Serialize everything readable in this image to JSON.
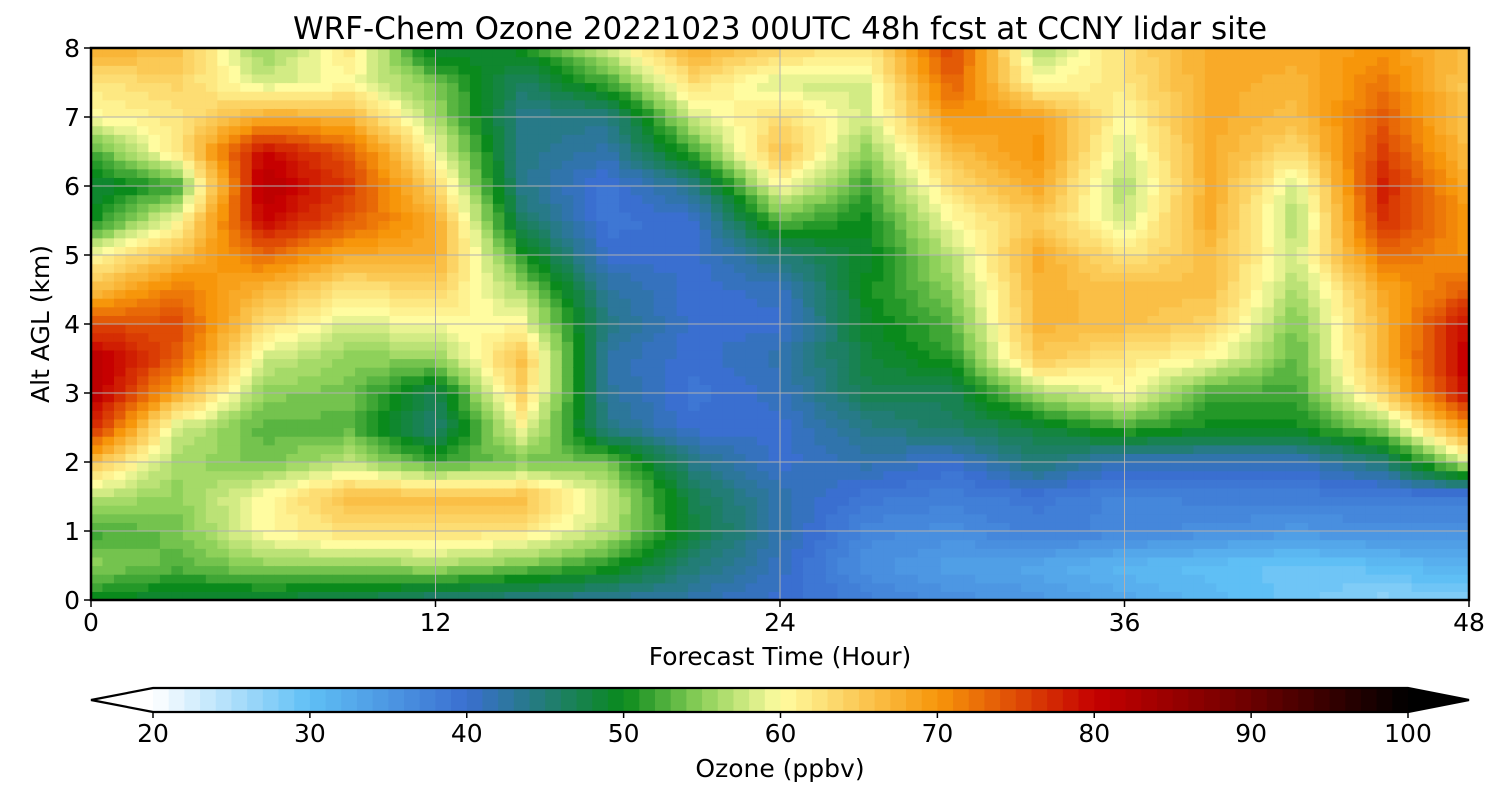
{
  "chart_data": {
    "type": "heatmap",
    "title": "WRF-Chem Ozone  20221023 00UTC 48h fcst at CCNY lidar site",
    "xlabel": "Forecast Time (Hour)",
    "ylabel": "Alt AGL (km)",
    "xlim": [
      0,
      48
    ],
    "ylim": [
      0,
      8
    ],
    "xticks": [
      0,
      12,
      24,
      36,
      48
    ],
    "yticks": [
      0,
      1,
      2,
      3,
      4,
      5,
      6,
      7,
      8
    ],
    "grid": true,
    "colorbar": {
      "label": "Ozone  (ppbv)",
      "orientation": "horizontal",
      "extend": "both",
      "range": [
        20,
        100
      ],
      "ticks": [
        20,
        30,
        40,
        50,
        60,
        70,
        80,
        90,
        100
      ],
      "stops": [
        {
          "v": 20,
          "c": "#ffffff"
        },
        {
          "v": 30,
          "c": "#5fbff5"
        },
        {
          "v": 40,
          "c": "#3a6fd0"
        },
        {
          "v": 50,
          "c": "#0a8a1c"
        },
        {
          "v": 55,
          "c": "#8ed15a"
        },
        {
          "v": 60,
          "c": "#fffca0"
        },
        {
          "v": 70,
          "c": "#f7960a"
        },
        {
          "v": 80,
          "c": "#c60000"
        },
        {
          "v": 90,
          "c": "#6b0000"
        },
        {
          "v": 100,
          "c": "#000000"
        }
      ]
    },
    "x_hours": [
      0,
      3,
      6,
      9,
      12,
      15,
      18,
      21,
      24,
      27,
      30,
      33,
      36,
      39,
      42,
      45,
      48
    ],
    "y_km": [
      0,
      0.5,
      1,
      1.5,
      2,
      2.5,
      3,
      3.5,
      4,
      4.5,
      5,
      5.5,
      6,
      6.5,
      7,
      7.5,
      8
    ],
    "z_ppbv": [
      [
        50,
        48,
        48,
        47,
        45,
        44,
        43,
        42,
        40,
        38,
        36,
        35,
        33,
        31,
        29,
        27,
        28
      ],
      [
        55,
        53,
        55,
        55,
        56,
        54,
        51,
        45,
        41,
        36,
        34,
        33,
        31,
        30,
        29,
        30,
        32
      ],
      [
        52,
        54,
        60,
        63,
        63,
        62,
        57,
        48,
        42,
        37,
        36,
        38,
        37,
        36,
        35,
        36,
        36
      ],
      [
        57,
        55,
        60,
        66,
        66,
        66,
        58,
        47,
        42,
        39,
        38,
        39,
        37,
        38,
        38,
        38,
        38
      ],
      [
        66,
        56,
        54,
        57,
        52,
        54,
        54,
        44,
        40,
        42,
        40,
        45,
        41,
        41,
        41,
        45,
        58
      ],
      [
        78,
        58,
        53,
        53,
        45,
        60,
        44,
        40,
        40,
        44,
        46,
        48,
        52,
        50,
        50,
        55,
        70
      ],
      [
        82,
        68,
        55,
        54,
        47,
        64,
        43,
        39,
        41,
        47,
        47,
        56,
        60,
        52,
        52,
        64,
        80
      ],
      [
        82,
        74,
        58,
        55,
        55,
        66,
        42,
        40,
        42,
        48,
        51,
        65,
        62,
        60,
        53,
        67,
        81
      ],
      [
        75,
        75,
        63,
        58,
        60,
        60,
        44,
        40,
        40,
        49,
        53,
        67,
        66,
        64,
        54,
        67,
        80
      ],
      [
        66,
        72,
        67,
        62,
        64,
        56,
        43,
        40,
        41,
        50,
        55,
        67,
        66,
        66,
        56,
        68,
        74
      ],
      [
        60,
        66,
        73,
        68,
        68,
        51,
        40,
        40,
        45,
        49,
        57,
        68,
        62,
        66,
        58,
        73,
        70
      ],
      [
        50,
        60,
        80,
        74,
        68,
        46,
        39,
        40,
        53,
        50,
        60,
        65,
        58,
        68,
        56,
        77,
        70
      ],
      [
        48,
        52,
        82,
        76,
        64,
        44,
        39,
        44,
        60,
        52,
        63,
        68,
        56,
        68,
        58,
        78,
        68
      ],
      [
        52,
        62,
        80,
        74,
        60,
        44,
        42,
        52,
        66,
        55,
        66,
        70,
        58,
        68,
        63,
        76,
        66
      ],
      [
        60,
        62,
        68,
        67,
        56,
        44,
        44,
        58,
        63,
        58,
        70,
        69,
        60,
        68,
        66,
        74,
        65
      ],
      [
        62,
        64,
        58,
        60,
        54,
        46,
        52,
        63,
        58,
        58,
        74,
        60,
        62,
        68,
        67,
        72,
        65
      ],
      [
        68,
        66,
        55,
        62,
        48,
        50,
        58,
        68,
        64,
        62,
        76,
        56,
        63,
        68,
        68,
        70,
        66
      ]
    ]
  }
}
